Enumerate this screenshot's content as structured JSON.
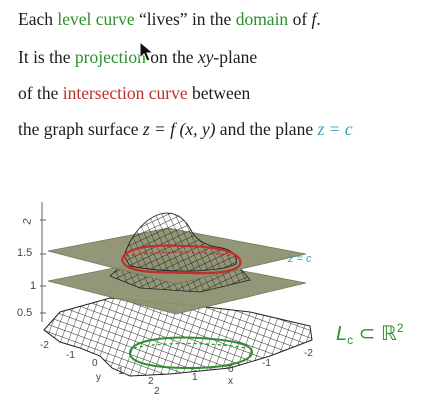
{
  "text": {
    "line1": {
      "p1": "Each ",
      "level_curve": "level curve",
      "p2": " “lives” in the ",
      "domain": "domain",
      "p3": " of ",
      "f": "f",
      "p4": "."
    },
    "line2": {
      "p1": "It is the ",
      "projection": "projection",
      "p2": " on the ",
      "xy": "xy",
      "p3": "-plane"
    },
    "line3": {
      "p1": "of the ",
      "intersection": "intersection curve",
      "p2": " between"
    },
    "line4": {
      "p1": "the graph surface ",
      "eq": "z = f (x, y)",
      "p2": " and the plane ",
      "zc": "z = c"
    }
  },
  "figure": {
    "z_ticks": [
      "2",
      "1.5",
      "1",
      "0.5"
    ],
    "y_ticks": [
      "-2",
      "-1",
      "0",
      "1",
      "2"
    ],
    "y_label": "y",
    "x_ticks": [
      "2",
      "1",
      "0",
      "-1",
      "-2"
    ],
    "x_label": "x",
    "plane_label": "z = c",
    "level_set_label": "L",
    "level_set_sub": "c",
    "level_set_rest": " ⊂ ℝ",
    "level_set_sup": "2"
  },
  "colors": {
    "green": "#2e8f2b",
    "red": "#c0302b",
    "teal": "#3aa0b5",
    "plane": "#8f9270"
  },
  "icons": [
    "mouse-pointer-icon"
  ]
}
